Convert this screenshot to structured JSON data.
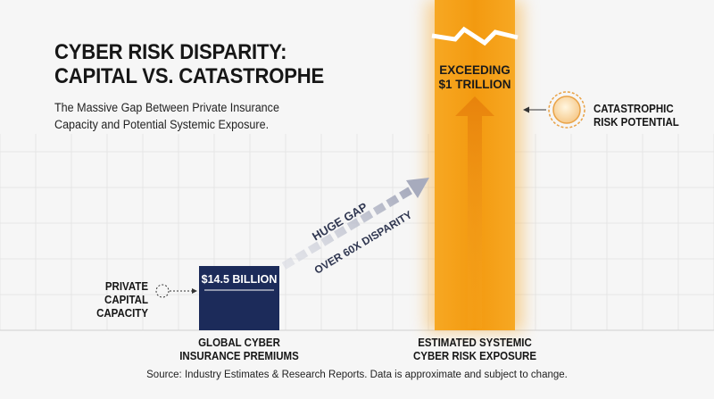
{
  "title_lines": [
    "CYBER RISK DISPARITY:",
    "CAPITAL VS. CATASTROPHE"
  ],
  "subtitle": "The Massive Gap Between Private Insurance Capacity and Potential Systemic Exposure.",
  "left_marker": {
    "lines": [
      "PRIVATE CAPITAL",
      "CAPACITY"
    ]
  },
  "right_marker": {
    "lines": [
      "CATASTROPHIC",
      "RISK POTENTIAL"
    ]
  },
  "gap_annotation": {
    "line1": "HUGE GAP",
    "line2": "OVER 60X DISPARITY"
  },
  "colors": {
    "premium_bar": "#1c2b5a",
    "exposure_bar": "#f39c12",
    "gap_arrow": "#b5b9c8",
    "grid": "#e2e2e2"
  },
  "chart_data": {
    "type": "bar",
    "categories": [
      "GLOBAL CYBER INSURANCE PREMIUMS",
      "ESTIMATED SYSTEMIC CYBER RISK EXPOSURE"
    ],
    "category_lines": [
      [
        "GLOBAL CYBER",
        "INSURANCE PREMIUMS"
      ],
      [
        "ESTIMATED SYSTEMIC",
        "CYBER RISK EXPOSURE"
      ]
    ],
    "values_billion_usd": [
      14.5,
      1000
    ],
    "data_labels": [
      [
        "$14.5 BILLION"
      ],
      [
        "EXCEEDING",
        "$1 TRILLION"
      ]
    ],
    "axis_break": true,
    "grid": true,
    "legend": "none",
    "source": "Source: Industry Estimates & Research Reports. Data is approximate and subject to change."
  }
}
